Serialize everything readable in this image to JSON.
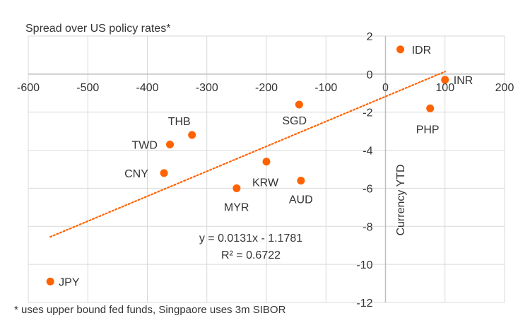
{
  "chart_data": {
    "type": "scatter",
    "title": "Spread over US policy rates*",
    "xlabel": "",
    "ylabel": "Currency YTD",
    "xlim": [
      -600,
      200
    ],
    "ylim": [
      -12,
      2
    ],
    "xticks": [
      -600,
      -500,
      -400,
      -300,
      -200,
      -100,
      0,
      100,
      200
    ],
    "yticks": [
      2,
      0,
      -2,
      -4,
      -6,
      -8,
      -10,
      -12
    ],
    "grid": true,
    "points": [
      {
        "label": "IDR",
        "x": 25,
        "y": 1.3
      },
      {
        "label": "INR",
        "x": 100,
        "y": -0.3
      },
      {
        "label": "PHP",
        "x": 75,
        "y": -1.8
      },
      {
        "label": "SGD",
        "x": -145,
        "y": -1.6
      },
      {
        "label": "THB",
        "x": -325,
        "y": -3.2
      },
      {
        "label": "TWD",
        "x": -362,
        "y": -3.7
      },
      {
        "label": "CNY",
        "x": -372,
        "y": -5.2
      },
      {
        "label": "KRW",
        "x": -200,
        "y": -4.6
      },
      {
        "label": "MYR",
        "x": -250,
        "y": -6.0
      },
      {
        "label": "AUD",
        "x": -142,
        "y": -5.6
      },
      {
        "label": "JPY",
        "x": -563,
        "y": -10.9
      }
    ],
    "trendline": {
      "type": "linear",
      "slope": 0.0131,
      "intercept": -1.1781,
      "x_range": [
        -563,
        100
      ],
      "equation": "y = 0.0131x - 1.1781",
      "r_squared_label": "R² = 0.6722"
    },
    "footnote": "* uses upper bound fed funds, Singpaore uses 3m SIBOR",
    "colors": {
      "points": "#ff6200",
      "trendline": "#ff6200",
      "grid": "#d9d9d9",
      "axis": "#bfbfbf",
      "text": "#333333"
    }
  }
}
